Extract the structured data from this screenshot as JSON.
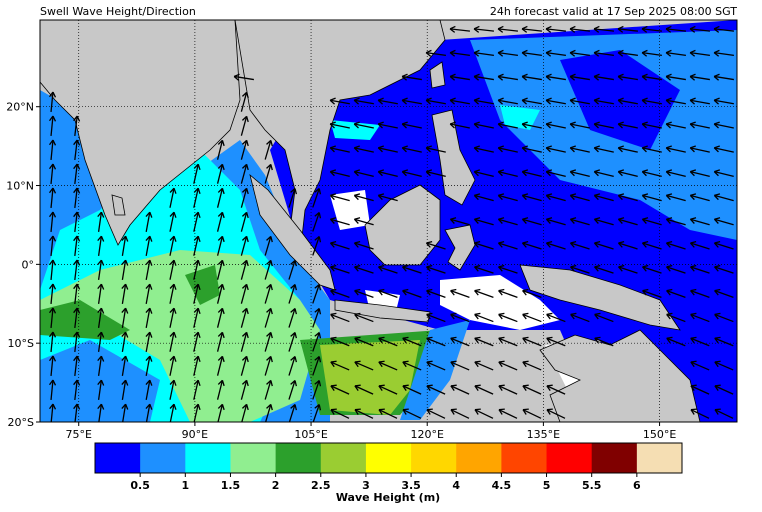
{
  "header": {
    "title_left": "Swell Wave Height/Direction",
    "title_right": "24h forecast valid at 17 Sep 2025 08:00 SGT"
  },
  "map": {
    "lon_lim": [
      70,
      160
    ],
    "lat_lim": [
      -20,
      31
    ],
    "lon_ticks": [
      {
        "value": 75,
        "label": "75°E"
      },
      {
        "value": 90,
        "label": "90°E"
      },
      {
        "value": 105,
        "label": "105°E"
      },
      {
        "value": 120,
        "label": "120°E"
      },
      {
        "value": 135,
        "label": "135°E"
      },
      {
        "value": 150,
        "label": "150°E"
      }
    ],
    "lat_ticks": [
      {
        "value": -20,
        "label": "20°S"
      },
      {
        "value": -10,
        "label": "10°S"
      },
      {
        "value": 0,
        "label": "0°"
      },
      {
        "value": 10,
        "label": "10°N"
      },
      {
        "value": 20,
        "label": "20°N"
      }
    ]
  },
  "colorbar": {
    "label": "Wave Height (m)",
    "lim": [
      0,
      6.5
    ],
    "colors": [
      "#0000ff",
      "#1e90ff",
      "#00ffff",
      "#90ee90",
      "#2ca02c",
      "#9acd32",
      "#ffff00",
      "#ffd700",
      "#ffa500",
      "#ff4500",
      "#ff0000",
      "#800000",
      "#f5deb3"
    ],
    "ticks": [
      0.5,
      1,
      1.5,
      2,
      2.5,
      3,
      3.5,
      4,
      4.5,
      5,
      5.5,
      6
    ]
  }
}
